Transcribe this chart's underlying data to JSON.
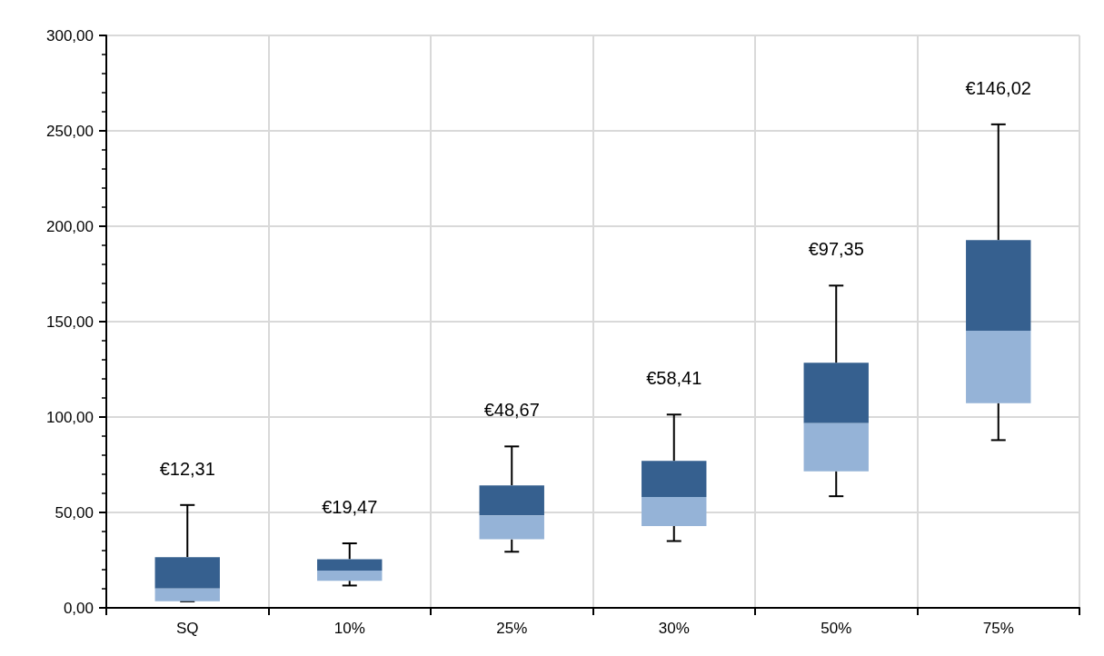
{
  "chart_data": {
    "type": "box",
    "categories": [
      "SQ",
      "10%",
      "25%",
      "30%",
      "50%",
      "75%"
    ],
    "boxes": [
      {
        "low": 3.4,
        "q1": 3.4,
        "median": 10.1,
        "q3": 26.6,
        "high": 53.9
      },
      {
        "low": 11.7,
        "q1": 14.2,
        "median": 19.5,
        "q3": 25.5,
        "high": 33.8
      },
      {
        "low": 29.4,
        "q1": 35.9,
        "median": 48.5,
        "q3": 64.2,
        "high": 84.6
      },
      {
        "low": 35.0,
        "q1": 42.9,
        "median": 58.1,
        "q3": 77.0,
        "high": 101.3
      },
      {
        "low": 58.5,
        "q1": 71.6,
        "median": 96.8,
        "q3": 128.4,
        "high": 168.9
      },
      {
        "low": 87.9,
        "q1": 107.3,
        "median": 145.2,
        "q3": 192.7,
        "high": 253.4
      }
    ],
    "color": "#36608f",
    "colors": [
      "#95b3d7",
      "#95b3d7",
      "#95b3d7",
      "#95b3d7",
      "#95b3d7",
      "#95b3d7"
    ],
    "ylim": [
      0,
      300
    ],
    "yticks": [
      {
        "value": 0,
        "label": "0,00"
      },
      {
        "value": 50,
        "label": "50,00"
      },
      {
        "value": 100,
        "label": "100,00"
      },
      {
        "value": 150,
        "label": "150,00"
      },
      {
        "value": 200,
        "label": "200,00"
      },
      {
        "value": 250,
        "label": "250,00"
      },
      {
        "value": 300,
        "label": "300,00"
      }
    ],
    "annotations": [
      {
        "text": "€12,31",
        "x": "SQ",
        "y": 53.9
      },
      {
        "text": "€19,47",
        "x": "10%",
        "y": 33.8
      },
      {
        "text": "€48,67",
        "x": "25%",
        "y": 84.6
      },
      {
        "text": "€58,41",
        "x": "30%",
        "y": 101.3
      },
      {
        "text": "€97,35",
        "x": "50%",
        "y": 168.9
      },
      {
        "text": "€146,02",
        "x": "75%",
        "y": 253.4
      }
    ],
    "grid": true
  }
}
